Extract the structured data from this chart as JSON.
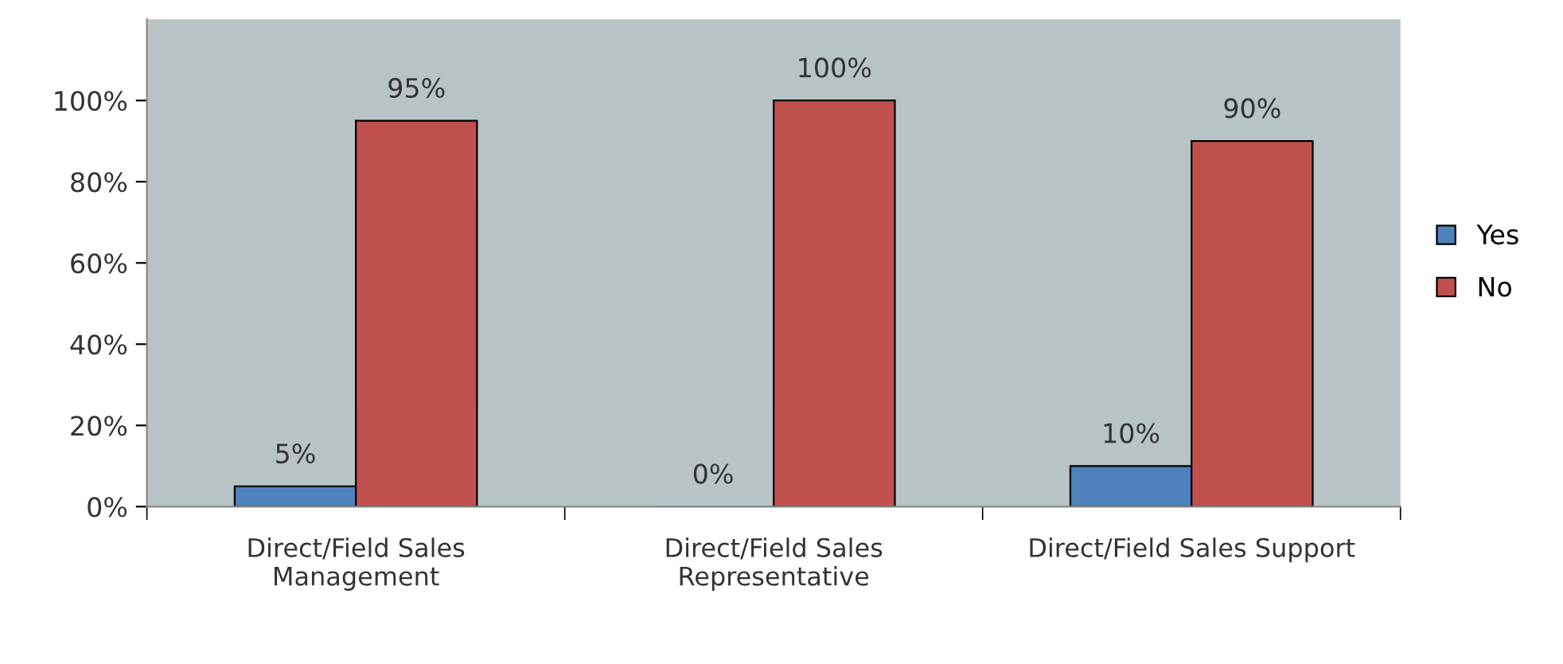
{
  "chart_data": {
    "type": "bar",
    "categories": [
      "Direct/Field Sales\nManagement",
      "Direct/Field Sales\nRepresentative",
      "Direct/Field Sales Support"
    ],
    "series": [
      {
        "name": "Yes",
        "color": "#4f81bd",
        "values": [
          5,
          0,
          10
        ],
        "value_labels": [
          "5%",
          "0%",
          "10%"
        ]
      },
      {
        "name": "No",
        "color": "#c0504d",
        "values": [
          95,
          100,
          90
        ],
        "value_labels": [
          "95%",
          "100%",
          "90%"
        ]
      }
    ],
    "ylim": [
      0,
      120
    ],
    "yticks": [
      {
        "value": 0,
        "label": "0%"
      },
      {
        "value": 20,
        "label": "20%"
      },
      {
        "value": 40,
        "label": "40%"
      },
      {
        "value": 60,
        "label": "60%"
      },
      {
        "value": 80,
        "label": "80%"
      },
      {
        "value": 100,
        "label": "100%"
      }
    ],
    "grid": false,
    "legend": "right"
  }
}
